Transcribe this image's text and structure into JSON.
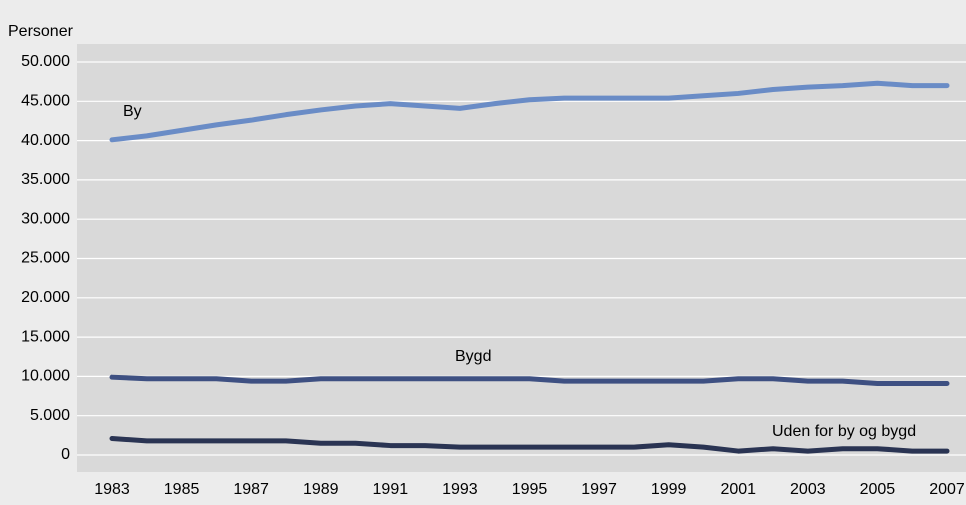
{
  "chart_data": {
    "type": "line",
    "ylabel": "Personer",
    "x": [
      1983,
      1984,
      1985,
      1986,
      1987,
      1988,
      1989,
      1990,
      1991,
      1992,
      1993,
      1994,
      1995,
      1996,
      1997,
      1998,
      1999,
      2000,
      2001,
      2002,
      2003,
      2004,
      2005,
      2006,
      2007
    ],
    "xlim": [
      1983,
      2007
    ],
    "xticks": [
      1983,
      1985,
      1987,
      1989,
      1991,
      1993,
      1995,
      1997,
      1999,
      2001,
      2003,
      2005,
      2007
    ],
    "ylim": [
      0,
      50000
    ],
    "yticks": [
      0,
      {
        "value": 5000,
        "label": "5.000"
      },
      {
        "value": 10000,
        "label": "10.000"
      },
      {
        "value": 15000,
        "label": "15.000"
      },
      {
        "value": 20000,
        "label": "20.000"
      },
      {
        "value": 25000,
        "label": "25.000"
      },
      {
        "value": 30000,
        "label": "30.000"
      },
      {
        "value": 35000,
        "label": "35.000"
      },
      {
        "value": 40000,
        "label": "40.000"
      },
      {
        "value": 45000,
        "label": "45.000"
      },
      {
        "value": 50000,
        "label": "50.000"
      }
    ],
    "grid": true,
    "series": [
      {
        "name": "By",
        "color": "#6a8cc6",
        "values": [
          40100,
          40600,
          41300,
          42000,
          42600,
          43300,
          43900,
          44400,
          44700,
          44400,
          44100,
          44700,
          45200,
          45400,
          45400,
          45400,
          45400,
          45700,
          46000,
          46500,
          46800,
          47000,
          47300,
          47000,
          47000
        ]
      },
      {
        "name": "Bygd",
        "color": "#3e5082",
        "values": [
          9900,
          9700,
          9700,
          9700,
          9400,
          9400,
          9700,
          9700,
          9700,
          9700,
          9700,
          9700,
          9700,
          9400,
          9400,
          9400,
          9400,
          9400,
          9700,
          9700,
          9400,
          9400,
          9100,
          9100,
          9100
        ]
      },
      {
        "name": "Uden for by og bygd",
        "color": "#2a3453",
        "values": [
          2100,
          1800,
          1800,
          1800,
          1800,
          1800,
          1500,
          1500,
          1200,
          1200,
          1000,
          1000,
          1000,
          1000,
          1000,
          1000,
          1300,
          1000,
          500,
          800,
          500,
          800,
          800,
          500,
          500
        ]
      }
    ]
  }
}
